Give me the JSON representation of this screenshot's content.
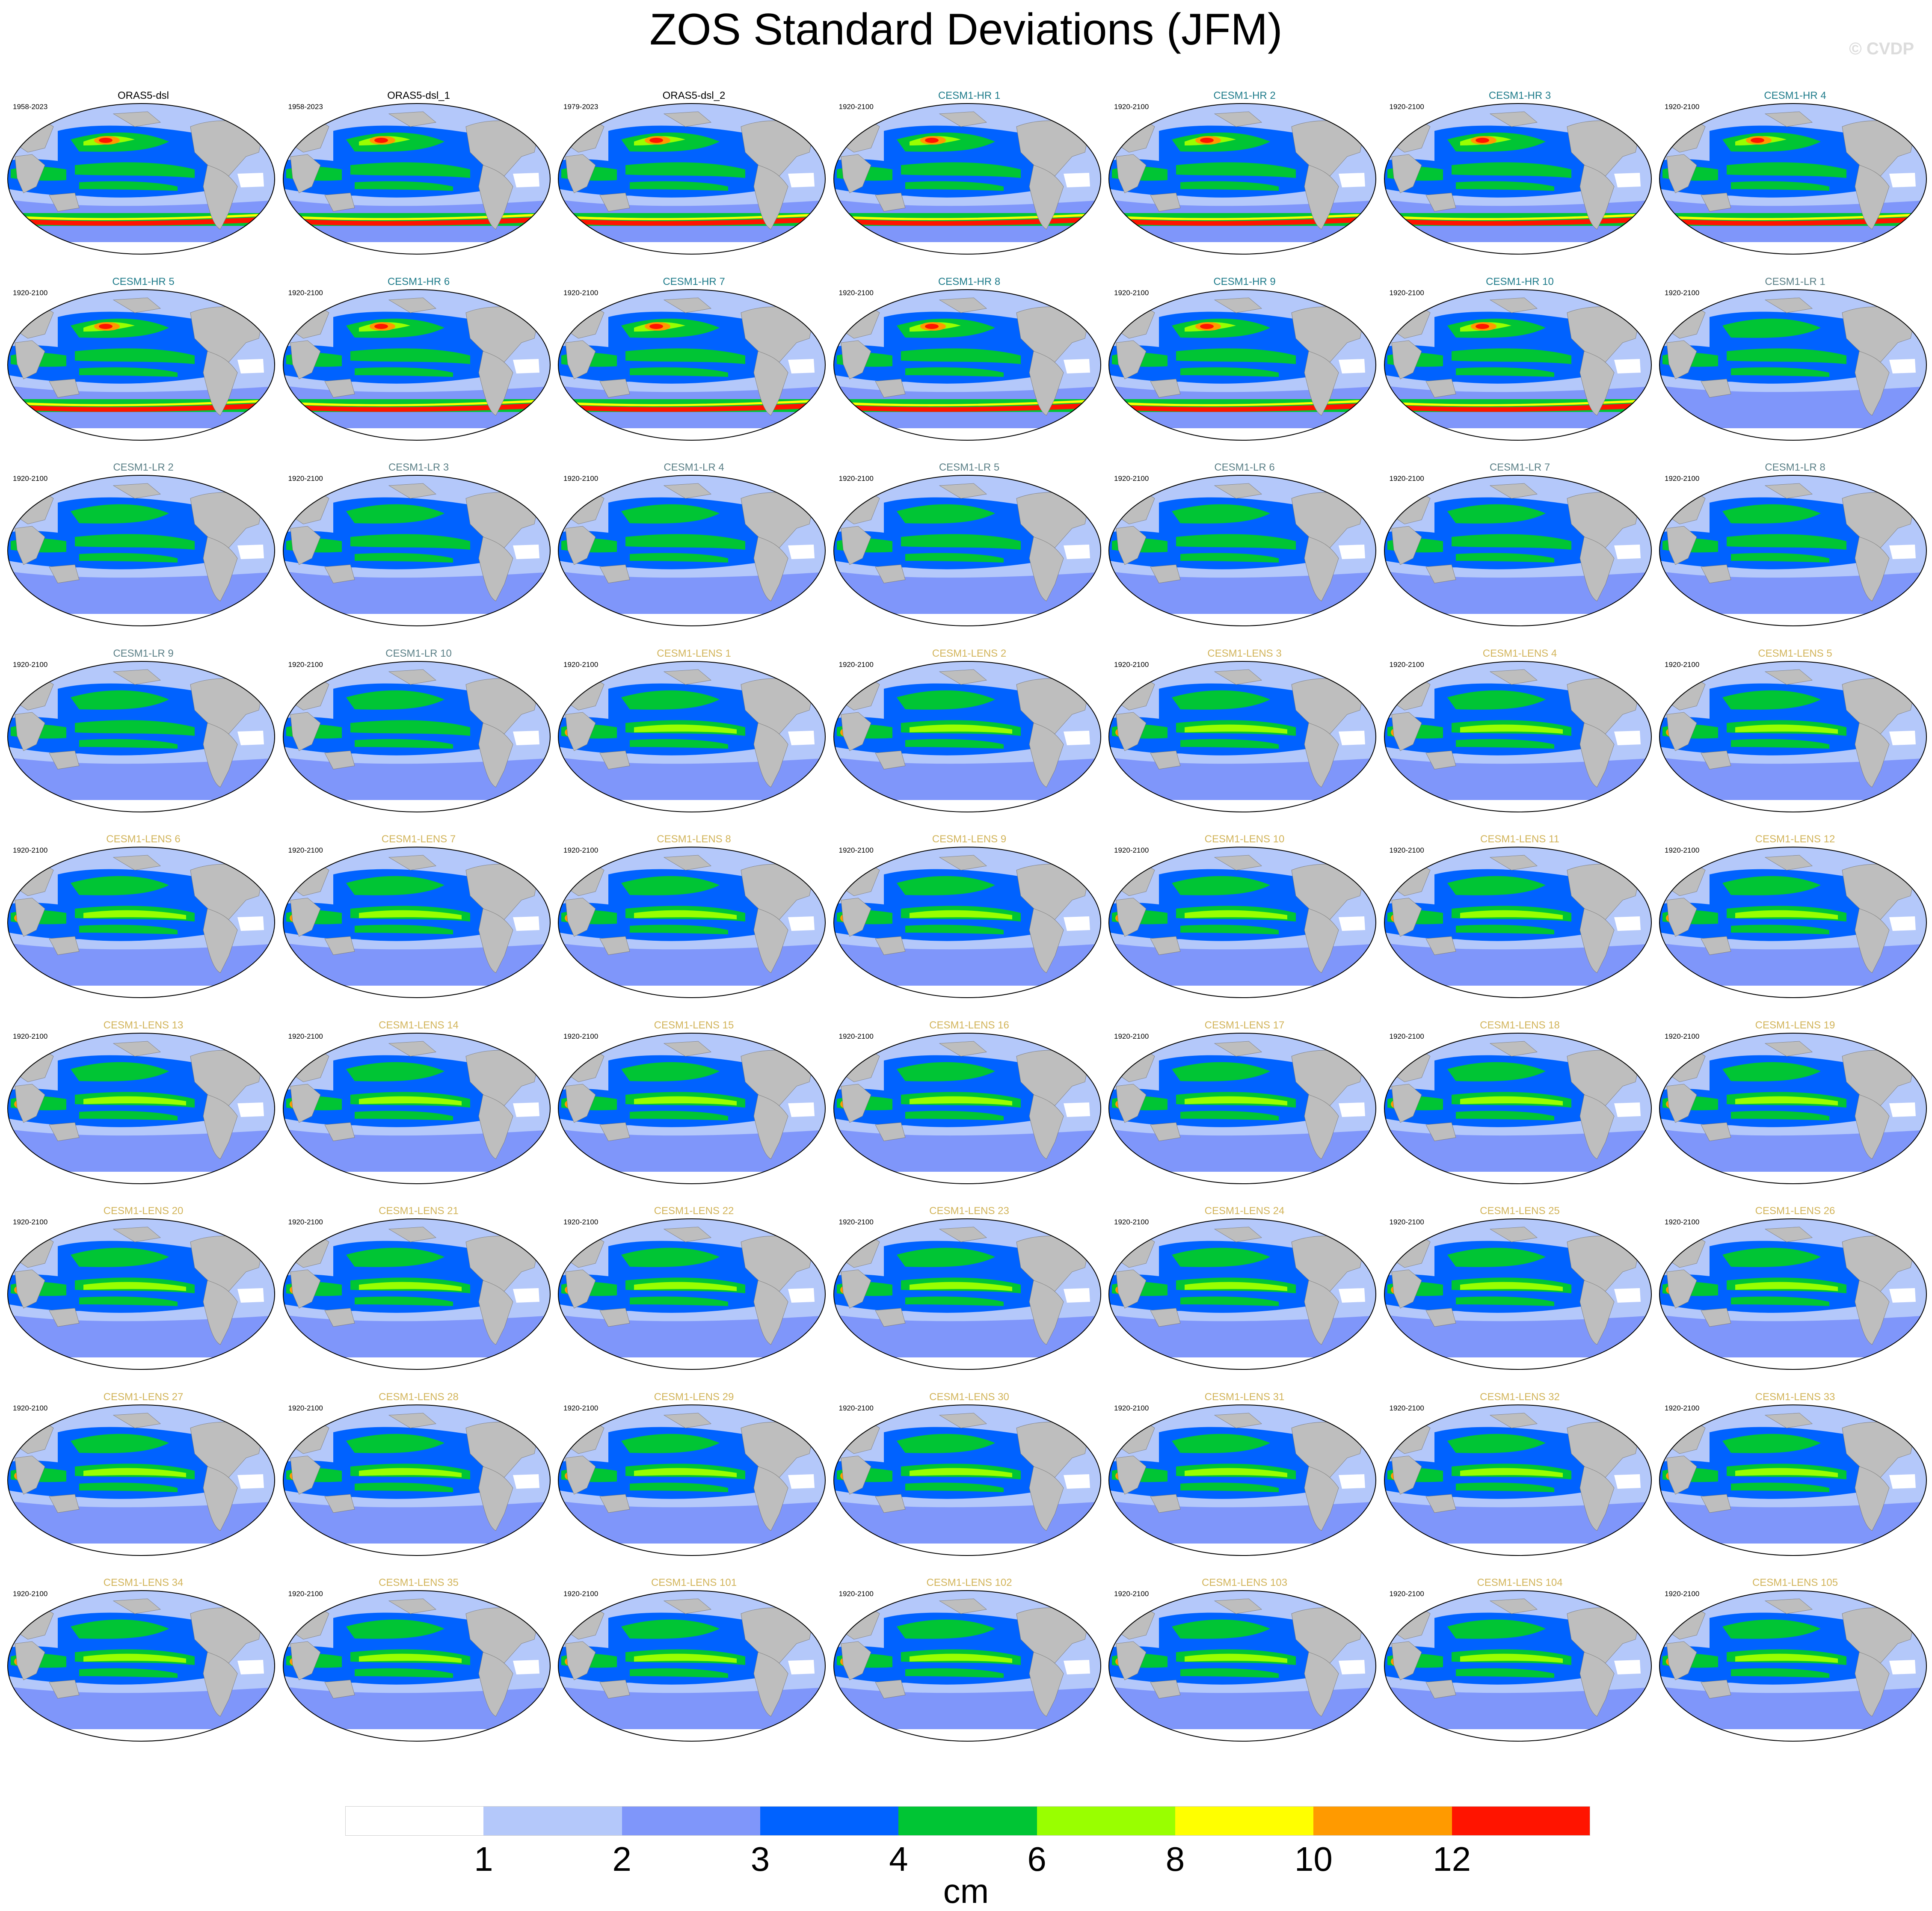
{
  "title": "ZOS Standard Deviations (JFM)",
  "copyright": "© CVDP",
  "colorbar": {
    "colors": [
      "#ffffff",
      "#b4c8fa",
      "#7f96fa",
      "#0062ff",
      "#00c534",
      "#99ff00",
      "#ffff00",
      "#ff9a00",
      "#ff1400"
    ],
    "ticks": [
      "1",
      "2",
      "3",
      "4",
      "6",
      "8",
      "10",
      "12"
    ],
    "units": "cm"
  },
  "panel_colors": {
    "obs": "#000000",
    "hr": "#1e7b8a",
    "lr": "#5a7f86",
    "lens": "#d2b45a",
    "land": "#bebebe"
  },
  "panels": [
    {
      "model": "ORAS5-dsl",
      "period": "1958-2023",
      "group": "obs"
    },
    {
      "model": "ORAS5-dsl_1",
      "period": "1958-2023",
      "group": "obs"
    },
    {
      "model": "ORAS5-dsl_2",
      "period": "1979-2023",
      "group": "obs"
    },
    {
      "model": "CESM1-HR 1",
      "period": "1920-2100",
      "group": "hr"
    },
    {
      "model": "CESM1-HR 2",
      "period": "1920-2100",
      "group": "hr"
    },
    {
      "model": "CESM1-HR 3",
      "period": "1920-2100",
      "group": "hr"
    },
    {
      "model": "CESM1-HR 4",
      "period": "1920-2100",
      "group": "hr"
    },
    {
      "model": "CESM1-HR 5",
      "period": "1920-2100",
      "group": "hr"
    },
    {
      "model": "CESM1-HR 6",
      "period": "1920-2100",
      "group": "hr"
    },
    {
      "model": "CESM1-HR 7",
      "period": "1920-2100",
      "group": "hr"
    },
    {
      "model": "CESM1-HR 8",
      "period": "1920-2100",
      "group": "hr"
    },
    {
      "model": "CESM1-HR 9",
      "period": "1920-2100",
      "group": "hr"
    },
    {
      "model": "CESM1-HR 10",
      "period": "1920-2100",
      "group": "hr"
    },
    {
      "model": "CESM1-LR 1",
      "period": "1920-2100",
      "group": "lr"
    },
    {
      "model": "CESM1-LR 2",
      "period": "1920-2100",
      "group": "lr"
    },
    {
      "model": "CESM1-LR 3",
      "period": "1920-2100",
      "group": "lr"
    },
    {
      "model": "CESM1-LR 4",
      "period": "1920-2100",
      "group": "lr"
    },
    {
      "model": "CESM1-LR 5",
      "period": "1920-2100",
      "group": "lr"
    },
    {
      "model": "CESM1-LR 6",
      "period": "1920-2100",
      "group": "lr"
    },
    {
      "model": "CESM1-LR 7",
      "period": "1920-2100",
      "group": "lr"
    },
    {
      "model": "CESM1-LR 8",
      "period": "1920-2100",
      "group": "lr"
    },
    {
      "model": "CESM1-LR 9",
      "period": "1920-2100",
      "group": "lr"
    },
    {
      "model": "CESM1-LR 10",
      "period": "1920-2100",
      "group": "lr"
    },
    {
      "model": "CESM1-LENS 1",
      "period": "1920-2100",
      "group": "lens"
    },
    {
      "model": "CESM1-LENS 2",
      "period": "1920-2100",
      "group": "lens"
    },
    {
      "model": "CESM1-LENS 3",
      "period": "1920-2100",
      "group": "lens"
    },
    {
      "model": "CESM1-LENS 4",
      "period": "1920-2100",
      "group": "lens"
    },
    {
      "model": "CESM1-LENS 5",
      "period": "1920-2100",
      "group": "lens"
    },
    {
      "model": "CESM1-LENS 6",
      "period": "1920-2100",
      "group": "lens"
    },
    {
      "model": "CESM1-LENS 7",
      "period": "1920-2100",
      "group": "lens"
    },
    {
      "model": "CESM1-LENS 8",
      "period": "1920-2100",
      "group": "lens"
    },
    {
      "model": "CESM1-LENS 9",
      "period": "1920-2100",
      "group": "lens"
    },
    {
      "model": "CESM1-LENS 10",
      "period": "1920-2100",
      "group": "lens"
    },
    {
      "model": "CESM1-LENS 11",
      "period": "1920-2100",
      "group": "lens"
    },
    {
      "model": "CESM1-LENS 12",
      "period": "1920-2100",
      "group": "lens"
    },
    {
      "model": "CESM1-LENS 13",
      "period": "1920-2100",
      "group": "lens"
    },
    {
      "model": "CESM1-LENS 14",
      "period": "1920-2100",
      "group": "lens"
    },
    {
      "model": "CESM1-LENS 15",
      "period": "1920-2100",
      "group": "lens"
    },
    {
      "model": "CESM1-LENS 16",
      "period": "1920-2100",
      "group": "lens"
    },
    {
      "model": "CESM1-LENS 17",
      "period": "1920-2100",
      "group": "lens"
    },
    {
      "model": "CESM1-LENS 18",
      "period": "1920-2100",
      "group": "lens"
    },
    {
      "model": "CESM1-LENS 19",
      "period": "1920-2100",
      "group": "lens"
    },
    {
      "model": "CESM1-LENS 20",
      "period": "1920-2100",
      "group": "lens"
    },
    {
      "model": "CESM1-LENS 21",
      "period": "1920-2100",
      "group": "lens"
    },
    {
      "model": "CESM1-LENS 22",
      "period": "1920-2100",
      "group": "lens"
    },
    {
      "model": "CESM1-LENS 23",
      "period": "1920-2100",
      "group": "lens"
    },
    {
      "model": "CESM1-LENS 24",
      "period": "1920-2100",
      "group": "lens"
    },
    {
      "model": "CESM1-LENS 25",
      "period": "1920-2100",
      "group": "lens"
    },
    {
      "model": "CESM1-LENS 26",
      "period": "1920-2100",
      "group": "lens"
    },
    {
      "model": "CESM1-LENS 27",
      "period": "1920-2100",
      "group": "lens"
    },
    {
      "model": "CESM1-LENS 28",
      "period": "1920-2100",
      "group": "lens"
    },
    {
      "model": "CESM1-LENS 29",
      "period": "1920-2100",
      "group": "lens"
    },
    {
      "model": "CESM1-LENS 30",
      "period": "1920-2100",
      "group": "lens"
    },
    {
      "model": "CESM1-LENS 31",
      "period": "1920-2100",
      "group": "lens"
    },
    {
      "model": "CESM1-LENS 32",
      "period": "1920-2100",
      "group": "lens"
    },
    {
      "model": "CESM1-LENS 33",
      "period": "1920-2100",
      "group": "lens"
    },
    {
      "model": "CESM1-LENS 34",
      "period": "1920-2100",
      "group": "lens"
    },
    {
      "model": "CESM1-LENS 35",
      "period": "1920-2100",
      "group": "lens"
    },
    {
      "model": "CESM1-LENS 101",
      "period": "1920-2100",
      "group": "lens"
    },
    {
      "model": "CESM1-LENS 102",
      "period": "1920-2100",
      "group": "lens"
    },
    {
      "model": "CESM1-LENS 103",
      "period": "1920-2100",
      "group": "lens"
    },
    {
      "model": "CESM1-LENS 104",
      "period": "1920-2100",
      "group": "lens"
    },
    {
      "model": "CESM1-LENS 105",
      "period": "1920-2100",
      "group": "lens"
    }
  ]
}
